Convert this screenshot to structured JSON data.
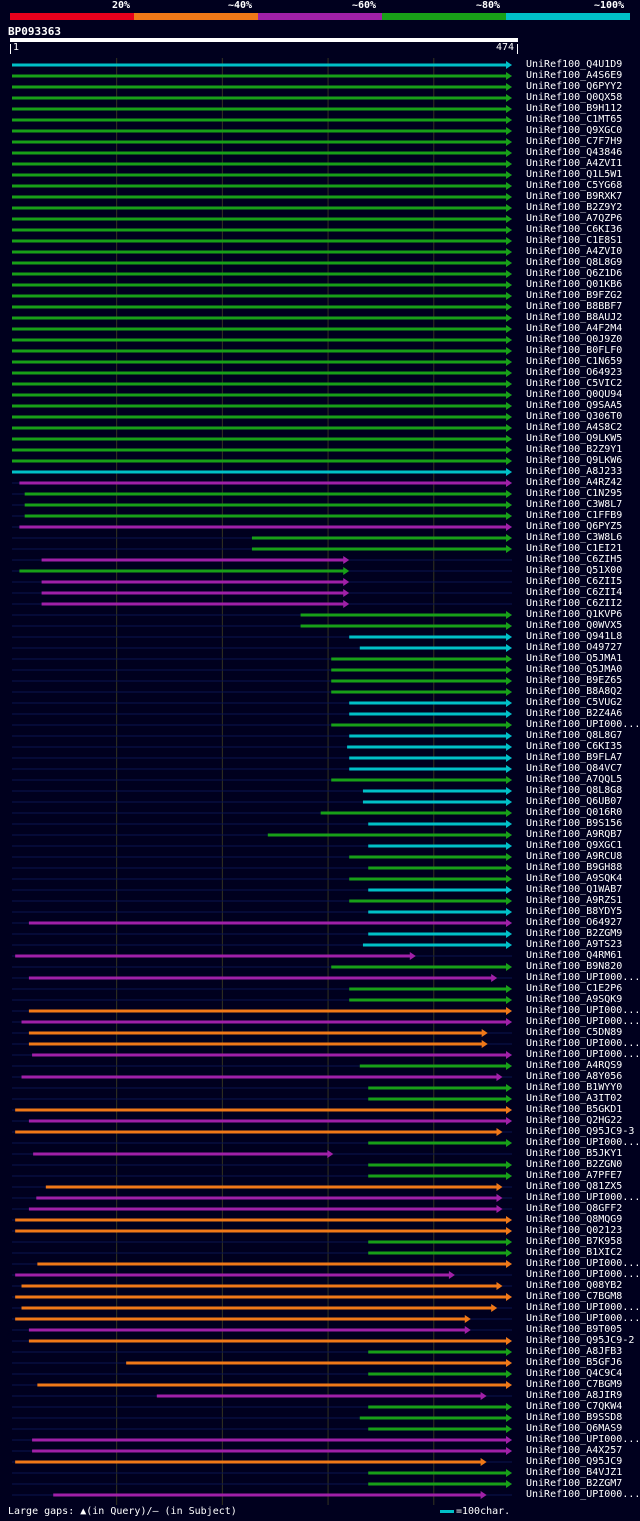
{
  "legend": {
    "labels": [
      "20%",
      "~40%",
      "~60%",
      "~80%",
      "~100%"
    ],
    "colors": [
      "#e8001c",
      "#f07818",
      "#a020a8",
      "#18a018",
      "#00c0c8"
    ]
  },
  "query": {
    "id": "BP093363",
    "start": "1",
    "end": "474"
  },
  "footer": {
    "large_gaps": "Large gaps: ▲(in Query)/— (in Subject)",
    "scale": "=100char."
  },
  "chart_data": {
    "type": "alignment",
    "title": "BP093363",
    "query_length": 474,
    "x_range": [
      1,
      474
    ],
    "hits": [
      {
        "name": "UniRef100_Q4U1D9",
        "start": 1,
        "end": 474,
        "identity": "~100%"
      },
      {
        "name": "UniRef100_A4S6E9",
        "start": 1,
        "end": 474,
        "identity": "~80%"
      },
      {
        "name": "UniRef100_Q6PYY2",
        "start": 1,
        "end": 474,
        "identity": "~80%"
      },
      {
        "name": "UniRef100_Q0QX58",
        "start": 1,
        "end": 474,
        "identity": "~80%"
      },
      {
        "name": "UniRef100_B9H112",
        "start": 1,
        "end": 474,
        "identity": "~80%"
      },
      {
        "name": "UniRef100_C1MT65",
        "start": 1,
        "end": 474,
        "identity": "~80%"
      },
      {
        "name": "UniRef100_Q9XGC0",
        "start": 1,
        "end": 474,
        "identity": "~80%"
      },
      {
        "name": "UniRef100_C7F7H9",
        "start": 1,
        "end": 474,
        "identity": "~80%"
      },
      {
        "name": "UniRef100_Q43846",
        "start": 1,
        "end": 474,
        "identity": "~80%"
      },
      {
        "name": "UniRef100_A4ZVI1",
        "start": 1,
        "end": 474,
        "identity": "~80%"
      },
      {
        "name": "UniRef100_Q1L5W1",
        "start": 1,
        "end": 474,
        "identity": "~80%"
      },
      {
        "name": "UniRef100_C5YG68",
        "start": 1,
        "end": 474,
        "identity": "~80%"
      },
      {
        "name": "UniRef100_B9RXK7",
        "start": 1,
        "end": 474,
        "identity": "~80%"
      },
      {
        "name": "UniRef100_B2Z9Y2",
        "start": 1,
        "end": 474,
        "identity": "~80%"
      },
      {
        "name": "UniRef100_A7QZP6",
        "start": 1,
        "end": 474,
        "identity": "~80%"
      },
      {
        "name": "UniRef100_C6KI36",
        "start": 1,
        "end": 474,
        "identity": "~80%"
      },
      {
        "name": "UniRef100_C1E8S1",
        "start": 1,
        "end": 474,
        "identity": "~80%"
      },
      {
        "name": "UniRef100_A4ZVI0",
        "start": 1,
        "end": 474,
        "identity": "~80%"
      },
      {
        "name": "UniRef100_Q8L8G9",
        "start": 1,
        "end": 474,
        "identity": "~80%"
      },
      {
        "name": "UniRef100_Q6Z1D6",
        "start": 1,
        "end": 474,
        "identity": "~80%"
      },
      {
        "name": "UniRef100_Q01KB6",
        "start": 1,
        "end": 474,
        "identity": "~80%"
      },
      {
        "name": "UniRef100_B9FZG2",
        "start": 1,
        "end": 474,
        "identity": "~80%"
      },
      {
        "name": "UniRef100_B8BBF7",
        "start": 1,
        "end": 474,
        "identity": "~80%"
      },
      {
        "name": "UniRef100_B8AUJ2",
        "start": 1,
        "end": 474,
        "identity": "~80%"
      },
      {
        "name": "UniRef100_A4F2M4",
        "start": 1,
        "end": 474,
        "identity": "~80%"
      },
      {
        "name": "UniRef100_Q0J9Z0",
        "start": 1,
        "end": 474,
        "identity": "~80%"
      },
      {
        "name": "UniRef100_B0FLF0",
        "start": 1,
        "end": 474,
        "identity": "~80%"
      },
      {
        "name": "UniRef100_C1N659",
        "start": 1,
        "end": 474,
        "identity": "~80%"
      },
      {
        "name": "UniRef100_O64923",
        "start": 1,
        "end": 474,
        "identity": "~80%"
      },
      {
        "name": "UniRef100_C5VIC2",
        "start": 1,
        "end": 474,
        "identity": "~80%"
      },
      {
        "name": "UniRef100_Q0QU94",
        "start": 1,
        "end": 474,
        "identity": "~80%"
      },
      {
        "name": "UniRef100_Q9SAA5",
        "start": 1,
        "end": 474,
        "identity": "~80%"
      },
      {
        "name": "UniRef100_Q306T0",
        "start": 1,
        "end": 474,
        "identity": "~80%"
      },
      {
        "name": "UniRef100_A4S8C2",
        "start": 1,
        "end": 474,
        "identity": "~80%"
      },
      {
        "name": "UniRef100_Q9LKW5",
        "start": 1,
        "end": 474,
        "identity": "~80%"
      },
      {
        "name": "UniRef100_B2Z9Y1",
        "start": 1,
        "end": 474,
        "identity": "~80%"
      },
      {
        "name": "UniRef100_Q9LKW6",
        "start": 1,
        "end": 474,
        "identity": "~80%"
      },
      {
        "name": "UniRef100_A8J233",
        "start": 1,
        "end": 474,
        "identity": "~100%"
      },
      {
        "name": "UniRef100_A4RZ42",
        "start": 8,
        "end": 474,
        "identity": "~60%"
      },
      {
        "name": "UniRef100_C1N295",
        "start": 13,
        "end": 474,
        "identity": "~80%"
      },
      {
        "name": "UniRef100_C3W8L7",
        "start": 13,
        "end": 474,
        "identity": "~80%"
      },
      {
        "name": "UniRef100_C1FFB9",
        "start": 13,
        "end": 474,
        "identity": "~80%"
      },
      {
        "name": "UniRef100_Q6PYZ5",
        "start": 8,
        "end": 474,
        "identity": "~60%"
      },
      {
        "name": "UniRef100_C3W8L6",
        "start": 228,
        "end": 474,
        "identity": "~80%"
      },
      {
        "name": "UniRef100_C1EI21",
        "start": 228,
        "end": 474,
        "identity": "~80%"
      },
      {
        "name": "UniRef100_C6ZIH5",
        "start": 29,
        "end": 320,
        "identity": "~60%"
      },
      {
        "name": "UniRef100_Q51X00",
        "start": 8,
        "end": 320,
        "identity": "~80%"
      },
      {
        "name": "UniRef100_C6ZII5",
        "start": 29,
        "end": 320,
        "identity": "~60%"
      },
      {
        "name": "UniRef100_C6ZII4",
        "start": 29,
        "end": 320,
        "identity": "~60%"
      },
      {
        "name": "UniRef100_C6ZII2",
        "start": 29,
        "end": 320,
        "identity": "~60%"
      },
      {
        "name": "UniRef100_Q1KVP6",
        "start": 274,
        "end": 474,
        "identity": "~80%"
      },
      {
        "name": "UniRef100_Q0WVX5",
        "start": 274,
        "end": 474,
        "identity": "~80%"
      },
      {
        "name": "UniRef100_Q941L8",
        "start": 320,
        "end": 474,
        "identity": "~100%"
      },
      {
        "name": "UniRef100_O49727",
        "start": 330,
        "end": 474,
        "identity": "~100%"
      },
      {
        "name": "UniRef100_Q5JMA1",
        "start": 303,
        "end": 474,
        "identity": "~80%"
      },
      {
        "name": "UniRef100_Q5JMA0",
        "start": 303,
        "end": 474,
        "identity": "~80%"
      },
      {
        "name": "UniRef100_B9EZ65",
        "start": 303,
        "end": 474,
        "identity": "~80%"
      },
      {
        "name": "UniRef100_B8A8Q2",
        "start": 303,
        "end": 474,
        "identity": "~80%"
      },
      {
        "name": "UniRef100_C5VUG2",
        "start": 320,
        "end": 474,
        "identity": "~100%"
      },
      {
        "name": "UniRef100_B2Z4A6",
        "start": 320,
        "end": 474,
        "identity": "~100%"
      },
      {
        "name": "UniRef100_UPI000...",
        "start": 303,
        "end": 474,
        "identity": "~80%"
      },
      {
        "name": "UniRef100_Q8L8G7",
        "start": 320,
        "end": 474,
        "identity": "~100%"
      },
      {
        "name": "UniRef100_C6KI35",
        "start": 318,
        "end": 474,
        "identity": "~100%"
      },
      {
        "name": "UniRef100_B9FLA7",
        "start": 320,
        "end": 474,
        "identity": "~100%"
      },
      {
        "name": "UniRef100_Q84VC7",
        "start": 320,
        "end": 474,
        "identity": "~100%"
      },
      {
        "name": "UniRef100_A7QQL5",
        "start": 303,
        "end": 474,
        "identity": "~80%"
      },
      {
        "name": "UniRef100_Q8L8G8",
        "start": 333,
        "end": 474,
        "identity": "~100%"
      },
      {
        "name": "UniRef100_Q6UB07",
        "start": 333,
        "end": 474,
        "identity": "~100%"
      },
      {
        "name": "UniRef100_Q016R0",
        "start": 293,
        "end": 474,
        "identity": "~80%"
      },
      {
        "name": "UniRef100_B9S156",
        "start": 338,
        "end": 474,
        "identity": "~100%"
      },
      {
        "name": "UniRef100_A9RQB7",
        "start": 243,
        "end": 474,
        "identity": "~80%"
      },
      {
        "name": "UniRef100_Q9XGC1",
        "start": 338,
        "end": 474,
        "identity": "~100%"
      },
      {
        "name": "UniRef100_A9RCU8",
        "start": 320,
        "end": 474,
        "identity": "~80%"
      },
      {
        "name": "UniRef100_B9GH88",
        "start": 338,
        "end": 474,
        "identity": "~80%"
      },
      {
        "name": "UniRef100_A9SQK4",
        "start": 320,
        "end": 474,
        "identity": "~80%"
      },
      {
        "name": "UniRef100_Q1WAB7",
        "start": 338,
        "end": 474,
        "identity": "~100%"
      },
      {
        "name": "UniRef100_A9RZS1",
        "start": 320,
        "end": 474,
        "identity": "~80%"
      },
      {
        "name": "UniRef100_B8YDY5",
        "start": 338,
        "end": 474,
        "identity": "~100%"
      },
      {
        "name": "UniRef100_O64927",
        "start": 17,
        "end": 474,
        "identity": "~60%"
      },
      {
        "name": "UniRef100_B2ZGM9",
        "start": 338,
        "end": 474,
        "identity": "~100%"
      },
      {
        "name": "UniRef100_A9TS23",
        "start": 333,
        "end": 474,
        "identity": "~100%"
      },
      {
        "name": "UniRef100_Q4RM61",
        "start": 4,
        "end": 383,
        "identity": "~60%"
      },
      {
        "name": "UniRef100_B9N820",
        "start": 303,
        "end": 474,
        "identity": "~80%"
      },
      {
        "name": "UniRef100_UPI000...",
        "start": 17,
        "end": 460,
        "identity": "~60%"
      },
      {
        "name": "UniRef100_C1E2P6",
        "start": 320,
        "end": 474,
        "identity": "~80%"
      },
      {
        "name": "UniRef100_A9SQK9",
        "start": 320,
        "end": 474,
        "identity": "~80%"
      },
      {
        "name": "UniRef100_UPI000...",
        "start": 17,
        "end": 474,
        "identity": "~40%"
      },
      {
        "name": "UniRef100_UPI000...",
        "start": 10,
        "end": 474,
        "identity": "~60%"
      },
      {
        "name": "UniRef100_C5DN89",
        "start": 17,
        "end": 451,
        "identity": "~40%"
      },
      {
        "name": "UniRef100_UPI000...",
        "start": 17,
        "end": 451,
        "identity": "~40%"
      },
      {
        "name": "UniRef100_UPI000...",
        "start": 20,
        "end": 474,
        "identity": "~60%"
      },
      {
        "name": "UniRef100_A4RQS9",
        "start": 330,
        "end": 474,
        "identity": "~80%"
      },
      {
        "name": "UniRef100_A8Y056",
        "start": 10,
        "end": 465,
        "identity": "~60%"
      },
      {
        "name": "UniRef100_B1WYY0",
        "start": 338,
        "end": 474,
        "identity": "~80%"
      },
      {
        "name": "UniRef100_A3IT02",
        "start": 338,
        "end": 474,
        "identity": "~80%"
      },
      {
        "name": "UniRef100_B5GKD1",
        "start": 4,
        "end": 474,
        "identity": "~40%"
      },
      {
        "name": "UniRef100_Q2HG22",
        "start": 17,
        "end": 474,
        "identity": "~60%"
      },
      {
        "name": "UniRef100_Q95JC9-3",
        "start": 4,
        "end": 465,
        "identity": "~40%"
      },
      {
        "name": "UniRef100_UPI000...",
        "start": 338,
        "end": 474,
        "identity": "~80%"
      },
      {
        "name": "UniRef100_B5JKY1",
        "start": 21,
        "end": 305,
        "identity": "~60%"
      },
      {
        "name": "UniRef100_B2ZGN0",
        "start": 338,
        "end": 474,
        "identity": "~80%"
      },
      {
        "name": "UniRef100_A7PFE7",
        "start": 338,
        "end": 474,
        "identity": "~80%"
      },
      {
        "name": "UniRef100_Q81ZX5",
        "start": 33,
        "end": 465,
        "identity": "~40%"
      },
      {
        "name": "UniRef100_UPI000...",
        "start": 24,
        "end": 465,
        "identity": "~60%"
      },
      {
        "name": "UniRef100_Q8GFF2",
        "start": 17,
        "end": 465,
        "identity": "~60%"
      },
      {
        "name": "UniRef100_Q8MQG9",
        "start": 4,
        "end": 474,
        "identity": "~40%"
      },
      {
        "name": "UniRef100_Q02123",
        "start": 4,
        "end": 474,
        "identity": "~40%"
      },
      {
        "name": "UniRef100_B7K958",
        "start": 338,
        "end": 474,
        "identity": "~80%"
      },
      {
        "name": "UniRef100_B1XIC2",
        "start": 338,
        "end": 474,
        "identity": "~80%"
      },
      {
        "name": "UniRef100_UPI000...",
        "start": 25,
        "end": 474,
        "identity": "~40%"
      },
      {
        "name": "UniRef100_UPI000...",
        "start": 4,
        "end": 420,
        "identity": "~60%"
      },
      {
        "name": "UniRef100_Q08YB2",
        "start": 10,
        "end": 465,
        "identity": "~40%"
      },
      {
        "name": "UniRef100_C7BGM8",
        "start": 4,
        "end": 474,
        "identity": "~40%"
      },
      {
        "name": "UniRef100_UPI000...",
        "start": 10,
        "end": 460,
        "identity": "~40%"
      },
      {
        "name": "UniRef100_UPI000...",
        "start": 4,
        "end": 435,
        "identity": "~40%"
      },
      {
        "name": "UniRef100_B9T005",
        "start": 17,
        "end": 435,
        "identity": "~60%"
      },
      {
        "name": "UniRef100_Q95JC9-2",
        "start": 17,
        "end": 474,
        "identity": "~40%"
      },
      {
        "name": "UniRef100_A8JFB3",
        "start": 338,
        "end": 474,
        "identity": "~80%"
      },
      {
        "name": "UniRef100_B5GFJ6",
        "start": 109,
        "end": 474,
        "identity": "~40%"
      },
      {
        "name": "UniRef100_Q4C9C4",
        "start": 338,
        "end": 474,
        "identity": "~80%"
      },
      {
        "name": "UniRef100_C7BGM9",
        "start": 25,
        "end": 474,
        "identity": "~40%"
      },
      {
        "name": "UniRef100_A8JIR9",
        "start": 138,
        "end": 450,
        "identity": "~60%"
      },
      {
        "name": "UniRef100_C7QKW4",
        "start": 338,
        "end": 474,
        "identity": "~80%"
      },
      {
        "name": "UniRef100_B9SSD8",
        "start": 330,
        "end": 474,
        "identity": "~80%"
      },
      {
        "name": "UniRef100_Q6MAS9",
        "start": 338,
        "end": 474,
        "identity": "~80%"
      },
      {
        "name": "UniRef100_UPI000...",
        "start": 20,
        "end": 474,
        "identity": "~60%"
      },
      {
        "name": "UniRef100_A4X257",
        "start": 20,
        "end": 474,
        "identity": "~60%"
      },
      {
        "name": "UniRef100_Q95JC9",
        "start": 4,
        "end": 450,
        "identity": "~40%"
      },
      {
        "name": "UniRef100_B4VJZ1",
        "start": 338,
        "end": 474,
        "identity": "~80%"
      },
      {
        "name": "UniRef100_B2ZGM7",
        "start": 338,
        "end": 474,
        "identity": "~80%"
      },
      {
        "name": "UniRef100_UPI000...",
        "start": 40,
        "end": 450,
        "identity": "~60%"
      }
    ]
  }
}
